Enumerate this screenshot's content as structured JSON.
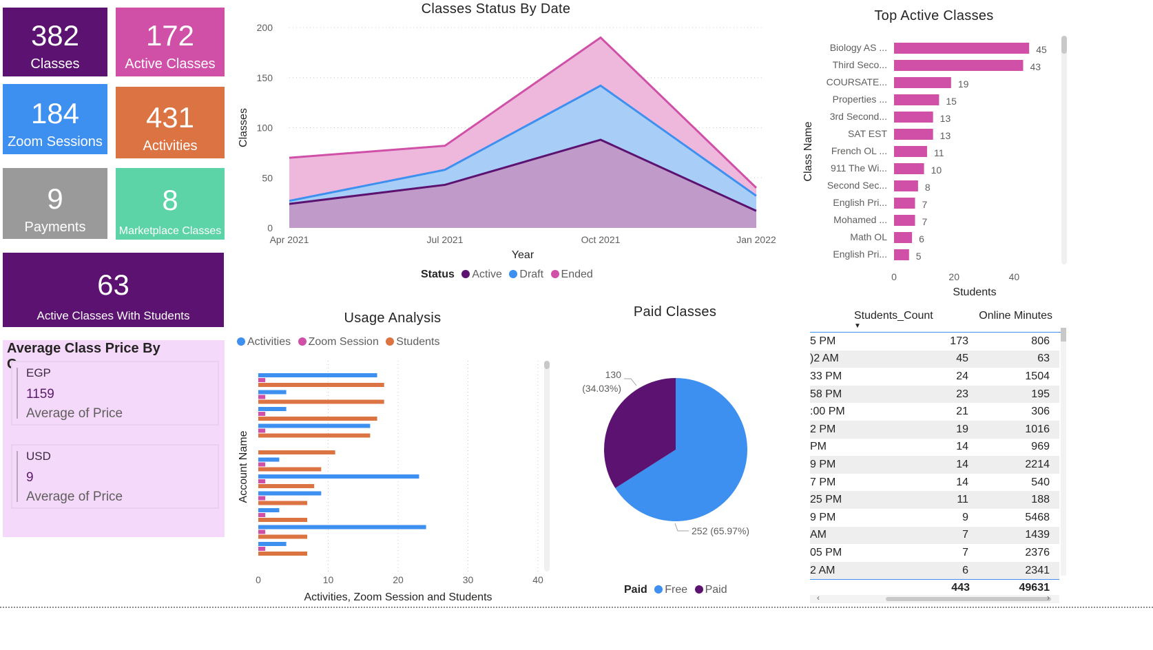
{
  "kpis": [
    {
      "value": "382",
      "label": "Classes",
      "color": "#5b1270"
    },
    {
      "value": "172",
      "label": "Active Classes",
      "color": "#d050a8"
    },
    {
      "value": "184",
      "label": "Zoom Sessions",
      "color": "#3d8ff0"
    },
    {
      "value": "431",
      "label": "Activities",
      "color": "#dc7342"
    },
    {
      "value": "9",
      "label": "Payments",
      "color": "#9a9a9a"
    },
    {
      "value": "8",
      "label": "Marketplace Classes",
      "color": "#5dd4a8"
    },
    {
      "value": "63",
      "label": "Active Classes With Students",
      "color": "#5b1270"
    }
  ],
  "avg_price": {
    "title": "Average Class Price By Currency",
    "cards": [
      {
        "currency": "EGP",
        "value": "1159",
        "caption": "Average of Price"
      },
      {
        "currency": "USD",
        "value": "9",
        "caption": "Average of Price"
      }
    ]
  },
  "colors": {
    "active": "#5b1270",
    "draft": "#3d8ff0",
    "ended": "#d050a8",
    "orange": "#dc7342"
  },
  "chart_data": [
    {
      "type": "area",
      "title": "Classes Status By Date",
      "xlabel": "Year",
      "ylabel": "Classes",
      "categories": [
        "Apr 2021",
        "Jul 2021",
        "Oct 2021",
        "Jan 2022"
      ],
      "ylim": [
        0,
        200
      ],
      "yticks": [
        "0",
        "50",
        "100",
        "150",
        "200"
      ],
      "stacked": true,
      "legend_title": "Status",
      "series": [
        {
          "name": "Active",
          "values": [
            24,
            43,
            88,
            17
          ],
          "color": "#5b1270"
        },
        {
          "name": "Draft",
          "values": [
            3,
            15,
            54,
            15
          ],
          "color": "#3d8ff0"
        },
        {
          "name": "Ended",
          "values": [
            43,
            24,
            48,
            8
          ],
          "color": "#d050a8"
        }
      ],
      "grid": true
    },
    {
      "type": "bar",
      "orientation": "horizontal",
      "title": "Top Active Classes",
      "xlabel": "Students",
      "ylabel": "Class Name",
      "categories": [
        "Biology AS ...",
        "Third Seco...",
        "COURSATE...",
        "Properties ...",
        "3rd Second...",
        "SAT EST",
        "French OL ...",
        "911 The Wi...",
        "Second Sec...",
        "English Pri...",
        "Mohamed ...",
        "Math OL",
        "English Pri..."
      ],
      "values": [
        45,
        43,
        19,
        15,
        13,
        13,
        11,
        10,
        8,
        7,
        7,
        6,
        5
      ],
      "xticks": [
        "0",
        "20",
        "40"
      ],
      "xlim": [
        0,
        50
      ],
      "color": "#d050a8"
    },
    {
      "type": "bar",
      "orientation": "horizontal",
      "title": "Usage Analysis",
      "xlabel": "Activities, Zoom Session and Students",
      "ylabel": "Account Name",
      "xlim": [
        0,
        40
      ],
      "xticks": [
        "0",
        "10",
        "20",
        "30",
        "40"
      ],
      "series": [
        {
          "name": "Activities",
          "values": [
            17,
            4,
            4,
            16,
            0,
            3,
            23,
            9,
            3,
            24,
            4
          ],
          "color": "#3d8ff0"
        },
        {
          "name": "Zoom Session",
          "values": [
            1,
            1,
            1,
            1,
            0,
            1,
            1,
            1,
            1,
            1,
            1
          ],
          "color": "#d050a8"
        },
        {
          "name": "Students",
          "values": [
            18,
            18,
            17,
            16,
            11,
            9,
            8,
            7,
            7,
            7,
            7
          ],
          "color": "#dc7342"
        }
      ]
    },
    {
      "type": "pie",
      "title": "Paid Classes",
      "legend_title": "Paid",
      "slices": [
        {
          "name": "Free",
          "value": 252,
          "label": "252 (65.97%)",
          "color": "#3d8ff0"
        },
        {
          "name": "Paid",
          "value": 130,
          "label_value": "130",
          "label_pct": "(34.03%)",
          "color": "#5b1270"
        }
      ]
    },
    {
      "type": "table",
      "columns": [
        "Students_Count",
        "Online Minutes"
      ],
      "rows": [
        {
          "time": "5 PM",
          "students": "173",
          "minutes": "806"
        },
        {
          "time": ")2 AM",
          "students": "45",
          "minutes": "63"
        },
        {
          "time": "33 PM",
          "students": "24",
          "minutes": "1504"
        },
        {
          "time": "58 PM",
          "students": "23",
          "minutes": "195"
        },
        {
          "time": ":00 PM",
          "students": "21",
          "minutes": "306"
        },
        {
          "time": "2 PM",
          "students": "19",
          "minutes": "1016"
        },
        {
          "time": "PM",
          "students": "14",
          "minutes": "969"
        },
        {
          "time": "9 PM",
          "students": "14",
          "minutes": "2214"
        },
        {
          "time": "7 PM",
          "students": "14",
          "minutes": "540"
        },
        {
          "time": "25 PM",
          "students": "11",
          "minutes": "188"
        },
        {
          "time": "9 PM",
          "students": "9",
          "minutes": "5468"
        },
        {
          "time": "AM",
          "students": "7",
          "minutes": "1439"
        },
        {
          "time": "05 PM",
          "students": "7",
          "minutes": "2376"
        },
        {
          "time": "2 AM",
          "students": "6",
          "minutes": "2341"
        }
      ],
      "totals": {
        "students": "443",
        "minutes": "49631"
      }
    }
  ]
}
